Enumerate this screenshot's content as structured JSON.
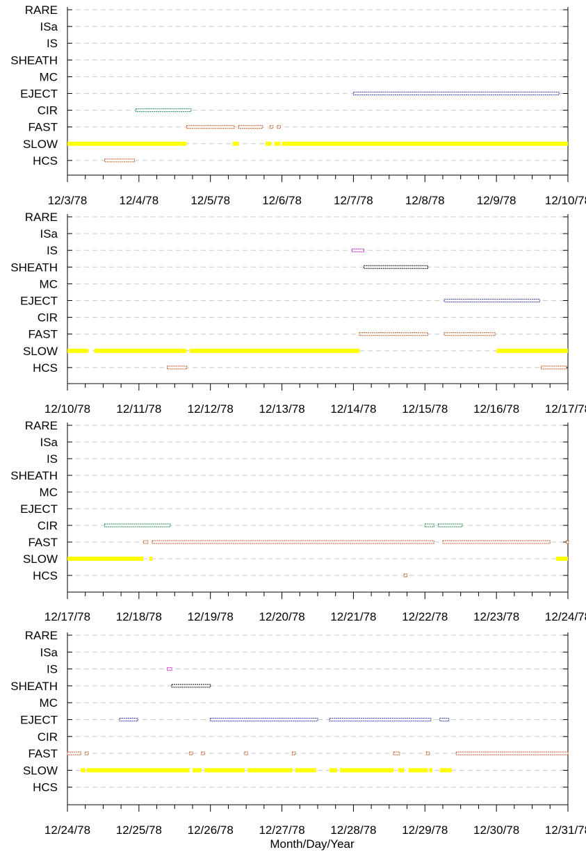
{
  "chart_data": {
    "type": "timeline",
    "xlabel": "Month/Day/Year",
    "categories": [
      "RARE",
      "ISa",
      "IS",
      "SHEATH",
      "MC",
      "EJECT",
      "CIR",
      "FAST",
      "SLOW",
      "HCS"
    ],
    "colors": {
      "ISa": "#cc00cc",
      "IS": "#cc00cc",
      "SHEATH": "#000000",
      "EJECT": "#3344bb",
      "CIR": "#11884a",
      "FAST": "#c0501a",
      "SLOW": "#ffff00",
      "HCS": "#c0501a"
    },
    "grid": "dashed horizontal",
    "panels": [
      {
        "xlim": [
          "1978-12-03",
          "1978-12-10"
        ],
        "tick_labels": [
          "12/3/78",
          "12/4/78",
          "12/5/78",
          "12/6/78",
          "12/7/78",
          "12/8/78",
          "12/9/78",
          "12/10/78"
        ],
        "intervals": [
          {
            "category": "EJECT",
            "start": "1978-12-07T00:00",
            "end": "1978-12-09T21:00"
          },
          {
            "category": "CIR",
            "start": "1978-12-03T23:00",
            "end": "1978-12-04T17:30"
          },
          {
            "category": "FAST",
            "start": "1978-12-04T16:00",
            "end": "1978-12-05T08:00"
          },
          {
            "category": "FAST",
            "start": "1978-12-05T09:30",
            "end": "1978-12-05T17:30"
          },
          {
            "category": "FAST",
            "start": "1978-12-05T20:00",
            "end": "1978-12-05T21:00"
          },
          {
            "category": "FAST",
            "start": "1978-12-05T22:30",
            "end": "1978-12-05T23:30"
          },
          {
            "category": "SLOW",
            "start": "1978-12-03T00:00",
            "end": "1978-12-04T16:00"
          },
          {
            "category": "SLOW",
            "start": "1978-12-05T07:30",
            "end": "1978-12-05T09:30"
          },
          {
            "category": "SLOW",
            "start": "1978-12-05T18:30",
            "end": "1978-12-05T20:30"
          },
          {
            "category": "SLOW",
            "start": "1978-12-05T21:30",
            "end": "1978-12-05T23:30"
          },
          {
            "category": "SLOW",
            "start": "1978-12-06T00:00",
            "end": "1978-12-10T03:00"
          },
          {
            "category": "HCS",
            "start": "1978-12-03T12:30",
            "end": "1978-12-03T22:30"
          }
        ]
      },
      {
        "xlim": [
          "1978-12-10",
          "1978-12-17"
        ],
        "tick_labels": [
          "12/10/78",
          "12/11/78",
          "12/12/78",
          "12/13/78",
          "12/14/78",
          "12/15/78",
          "12/16/78",
          "12/17/78"
        ],
        "intervals": [
          {
            "category": "IS",
            "start": "1978-12-13T23:30",
            "end": "1978-12-14T03:30"
          },
          {
            "category": "SHEATH",
            "start": "1978-12-14T03:30",
            "end": "1978-12-15T01:00"
          },
          {
            "category": "EJECT",
            "start": "1978-12-15T06:30",
            "end": "1978-12-16T14:30"
          },
          {
            "category": "FAST",
            "start": "1978-12-14T02:00",
            "end": "1978-12-15T01:00"
          },
          {
            "category": "FAST",
            "start": "1978-12-15T06:30",
            "end": "1978-12-15T23:30"
          },
          {
            "category": "SLOW",
            "start": "1978-12-10T00:00",
            "end": "1978-12-10T07:00"
          },
          {
            "category": "SLOW",
            "start": "1978-12-10T09:00",
            "end": "1978-12-11T16:00"
          },
          {
            "category": "SLOW",
            "start": "1978-12-11T17:00",
            "end": "1978-12-14T02:00"
          },
          {
            "category": "SLOW",
            "start": "1978-12-16T00:00",
            "end": "1978-12-17T03:00"
          },
          {
            "category": "HCS",
            "start": "1978-12-11T09:30",
            "end": "1978-12-11T16:00"
          },
          {
            "category": "HCS",
            "start": "1978-12-16T15:00",
            "end": "1978-12-16T23:30"
          }
        ]
      },
      {
        "xlim": [
          "1978-12-17",
          "1978-12-24"
        ],
        "tick_labels": [
          "12/17/78",
          "12/18/78",
          "12/19/78",
          "12/20/78",
          "12/21/78",
          "12/22/78",
          "12/23/78",
          "12/24/78"
        ],
        "intervals": [
          {
            "category": "CIR",
            "start": "1978-12-17T12:30",
            "end": "1978-12-18T10:30"
          },
          {
            "category": "CIR",
            "start": "1978-12-22T00:00",
            "end": "1978-12-22T03:00"
          },
          {
            "category": "CIR",
            "start": "1978-12-22T04:30",
            "end": "1978-12-22T12:30"
          },
          {
            "category": "FAST",
            "start": "1978-12-18T01:30",
            "end": "1978-12-18T03:00"
          },
          {
            "category": "FAST",
            "start": "1978-12-18T04:30",
            "end": "1978-12-22T03:00"
          },
          {
            "category": "FAST",
            "start": "1978-12-22T06:00",
            "end": "1978-12-23T18:00"
          },
          {
            "category": "FAST",
            "start": "1978-12-23T23:30",
            "end": "1978-12-24T03:00"
          },
          {
            "category": "SLOW",
            "start": "1978-12-17T00:00",
            "end": "1978-12-18T01:30"
          },
          {
            "category": "SLOW",
            "start": "1978-12-18T03:30",
            "end": "1978-12-18T04:30"
          },
          {
            "category": "SLOW",
            "start": "1978-12-23T20:00",
            "end": "1978-12-24T00:00"
          },
          {
            "category": "HCS",
            "start": "1978-12-21T17:00",
            "end": "1978-12-21T18:00"
          }
        ]
      },
      {
        "xlim": [
          "1978-12-24",
          "1978-12-31"
        ],
        "tick_labels": [
          "12/24/78",
          "12/25/78",
          "12/26/78",
          "12/27/78",
          "12/28/78",
          "12/29/78",
          "12/30/78",
          "12/31/78"
        ],
        "intervals": [
          {
            "category": "IS",
            "start": "1978-12-25T09:30",
            "end": "1978-12-25T11:00"
          },
          {
            "category": "SHEATH",
            "start": "1978-12-25T11:00",
            "end": "1978-12-26T00:00"
          },
          {
            "category": "EJECT",
            "start": "1978-12-24T17:30",
            "end": "1978-12-24T23:30"
          },
          {
            "category": "EJECT",
            "start": "1978-12-26T00:00",
            "end": "1978-12-27T12:00"
          },
          {
            "category": "EJECT",
            "start": "1978-12-27T16:00",
            "end": "1978-12-29T02:00"
          },
          {
            "category": "EJECT",
            "start": "1978-12-29T05:00",
            "end": "1978-12-29T08:00"
          },
          {
            "category": "FAST",
            "start": "1978-12-24T00:00",
            "end": "1978-12-24T04:30"
          },
          {
            "category": "FAST",
            "start": "1978-12-24T06:00",
            "end": "1978-12-24T07:00"
          },
          {
            "category": "FAST",
            "start": "1978-12-25T17:00",
            "end": "1978-12-25T18:00"
          },
          {
            "category": "FAST",
            "start": "1978-12-25T21:00",
            "end": "1978-12-25T22:00"
          },
          {
            "category": "FAST",
            "start": "1978-12-26T11:30",
            "end": "1978-12-26T12:30"
          },
          {
            "category": "FAST",
            "start": "1978-12-27T03:30",
            "end": "1978-12-27T04:30"
          },
          {
            "category": "FAST",
            "start": "1978-12-28T13:30",
            "end": "1978-12-28T15:30"
          },
          {
            "category": "FAST",
            "start": "1978-12-29T00:30",
            "end": "1978-12-29T01:30"
          },
          {
            "category": "FAST",
            "start": "1978-12-29T10:30",
            "end": "1978-12-31T03:00"
          },
          {
            "category": "SLOW",
            "start": "1978-12-24T04:30",
            "end": "1978-12-24T06:00"
          },
          {
            "category": "SLOW",
            "start": "1978-12-24T06:30",
            "end": "1978-12-25T17:00"
          },
          {
            "category": "SLOW",
            "start": "1978-12-25T18:00",
            "end": "1978-12-25T21:00"
          },
          {
            "category": "SLOW",
            "start": "1978-12-25T22:00",
            "end": "1978-12-26T11:30"
          },
          {
            "category": "SLOW",
            "start": "1978-12-26T12:30",
            "end": "1978-12-27T03:30"
          },
          {
            "category": "SLOW",
            "start": "1978-12-27T04:30",
            "end": "1978-12-27T11:30"
          },
          {
            "category": "SLOW",
            "start": "1978-12-27T16:00",
            "end": "1978-12-27T18:30"
          },
          {
            "category": "SLOW",
            "start": "1978-12-27T19:30",
            "end": "1978-12-28T13:30"
          },
          {
            "category": "SLOW",
            "start": "1978-12-28T15:00",
            "end": "1978-12-28T17:00"
          },
          {
            "category": "SLOW",
            "start": "1978-12-28T18:30",
            "end": "1978-12-29T01:00"
          },
          {
            "category": "SLOW",
            "start": "1978-12-29T01:30",
            "end": "1978-12-29T02:30"
          },
          {
            "category": "SLOW",
            "start": "1978-12-29T05:00",
            "end": "1978-12-29T09:00"
          }
        ]
      }
    ]
  }
}
